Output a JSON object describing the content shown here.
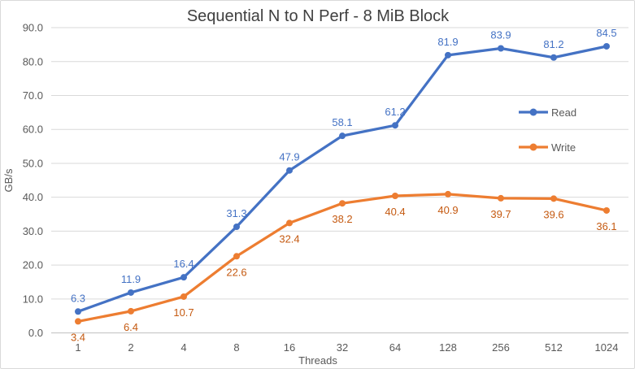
{
  "chart_data": {
    "type": "line",
    "title": "Sequential N to N Perf - 8 MiB Block",
    "xlabel": "Threads",
    "ylabel": "GB/s",
    "categories": [
      "1",
      "2",
      "4",
      "8",
      "16",
      "32",
      "64",
      "128",
      "256",
      "512",
      "1024"
    ],
    "series": [
      {
        "name": "Read",
        "color": "#4472C4",
        "label_color": "#4472C4",
        "label_position": "above",
        "values": [
          6.3,
          11.9,
          16.4,
          31.3,
          47.9,
          58.1,
          61.2,
          81.9,
          83.9,
          81.2,
          84.5
        ]
      },
      {
        "name": "Write",
        "color": "#ED7D31",
        "label_color": "#C55A11",
        "label_position": "below",
        "values": [
          3.4,
          6.4,
          10.7,
          22.6,
          32.4,
          38.2,
          40.4,
          40.9,
          39.7,
          39.6,
          36.1
        ]
      }
    ],
    "ylim": [
      0,
      90
    ],
    "ytick_step": 10,
    "ytick_decimals": 1,
    "grid": "horizontal",
    "legend_position": "inside-right",
    "colors": {
      "gridline": "#D9D9D9",
      "axis_line": "#BFBFBF",
      "axis_text": "#595959",
      "title_text": "#404040",
      "border": "#D9D9D9",
      "background": "#FFFFFF"
    }
  }
}
